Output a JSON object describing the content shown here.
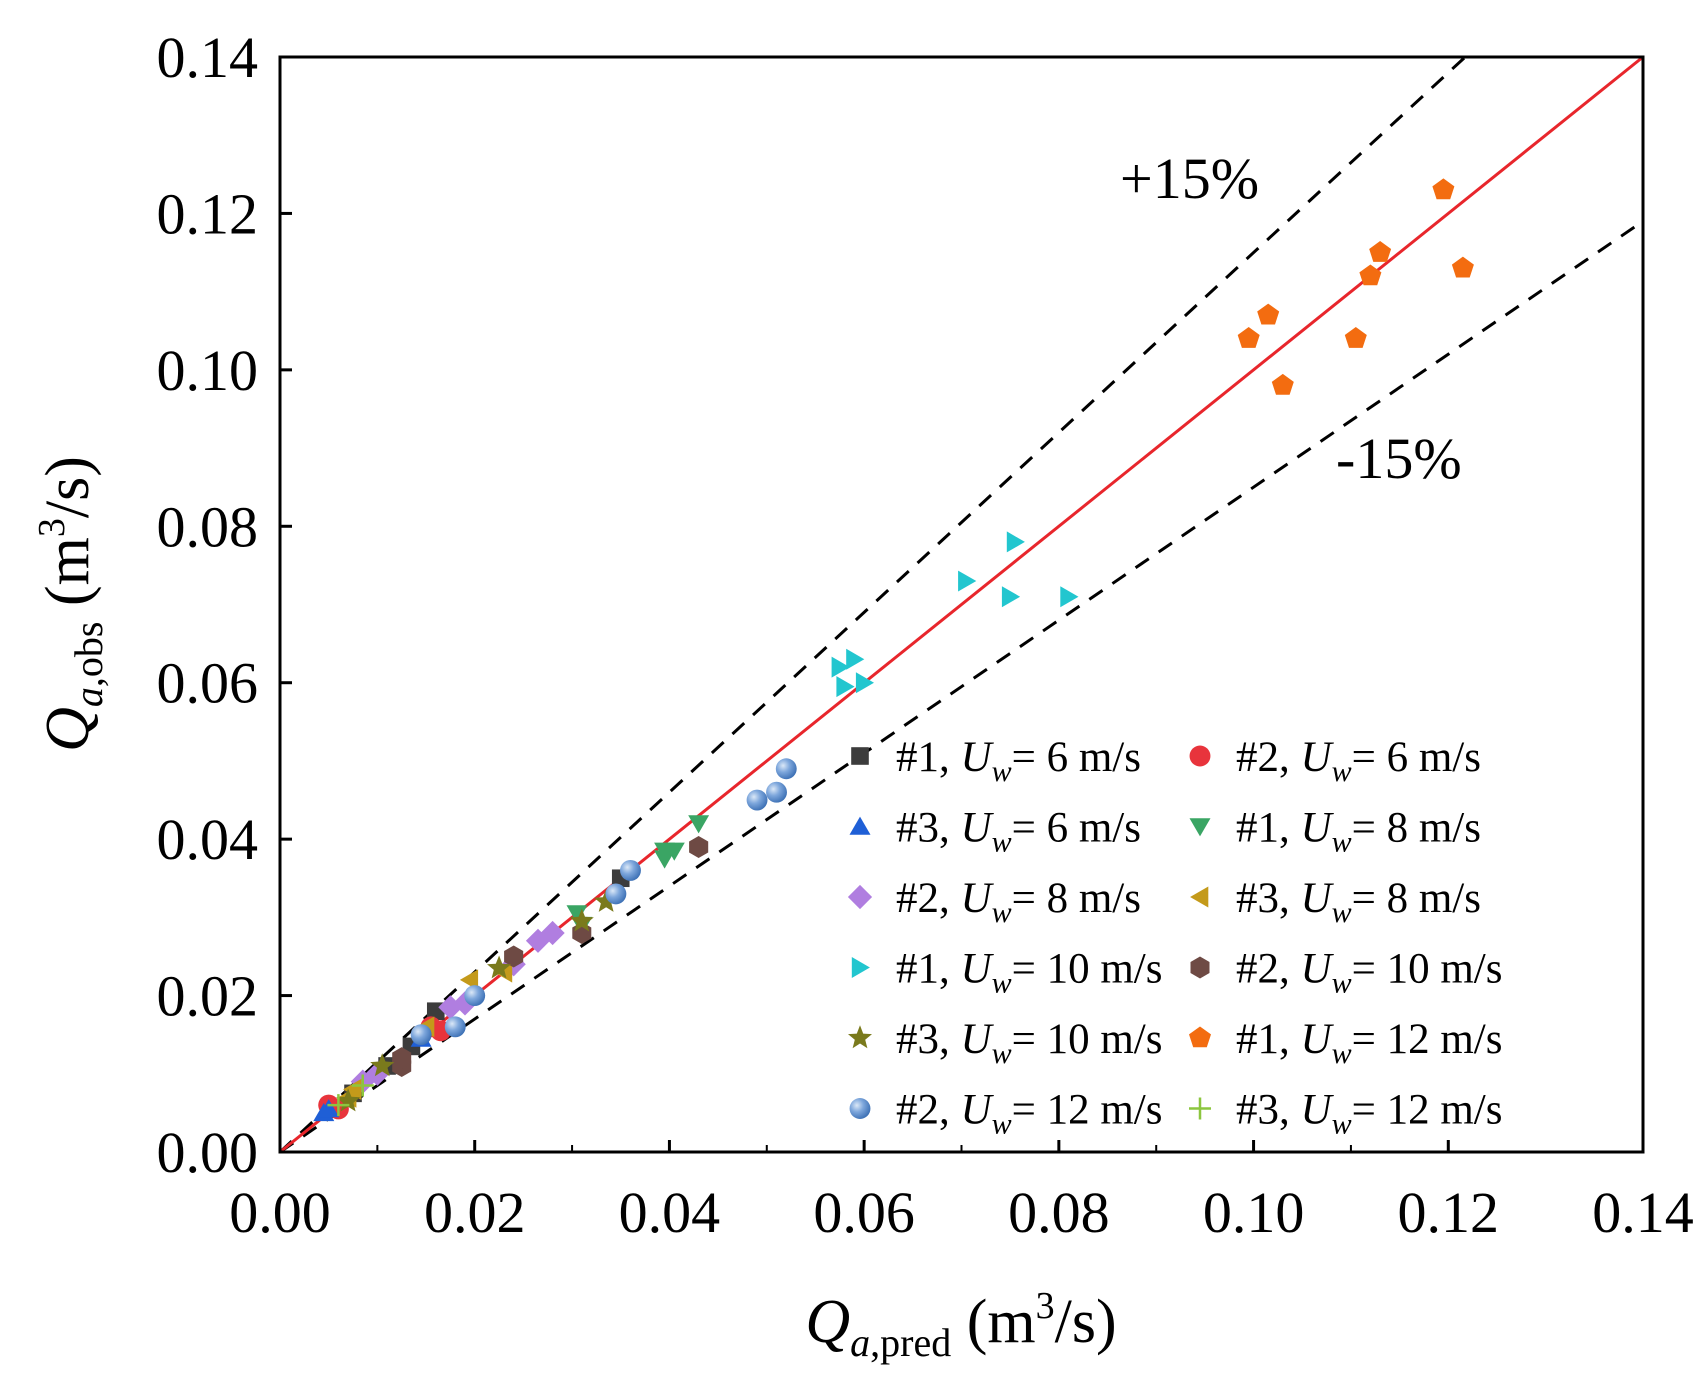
{
  "chart_data": {
    "type": "scatter",
    "xlabel": {
      "main": "Q",
      "sub": "a,pred",
      "unit_pre": " (m",
      "sup": "3",
      "unit_post": "/s)"
    },
    "ylabel": {
      "main": "Q",
      "sub": "a,obs",
      "unit_pre": " (m",
      "sup": "3",
      "unit_post": "/s)"
    },
    "xlim": [
      0,
      0.14
    ],
    "ylim": [
      0,
      0.14
    ],
    "x_ticks": [
      "0.00",
      "0.02",
      "0.04",
      "0.06",
      "0.08",
      "0.10",
      "0.12",
      "0.14"
    ],
    "y_ticks": [
      "0.00",
      "0.02",
      "0.04",
      "0.06",
      "0.08",
      "0.10",
      "0.12",
      "0.14"
    ],
    "reference_lines": [
      {
        "name": "1:1",
        "slope": 1.0,
        "color": "#e8262c",
        "style": "solid"
      },
      {
        "name": "+15%",
        "slope": 1.15,
        "color": "#000000",
        "style": "dashed"
      },
      {
        "name": "-15%",
        "slope": 0.85,
        "color": "#000000",
        "style": "dashed"
      }
    ],
    "annotations": {
      "plus": "+15%",
      "minus": "-15%"
    },
    "legend_position": "bottom-right",
    "series": [
      {
        "id": "1-6",
        "label_pre": "#1, ",
        "label_u": "U",
        "label_sub": "w",
        "label_post": "= 6 m/s",
        "marker": "square",
        "color": "#3c3c3c",
        "points": [
          [
            0.0055,
            0.0055
          ],
          [
            0.0075,
            0.0075
          ],
          [
            0.011,
            0.011
          ],
          [
            0.0135,
            0.0135
          ],
          [
            0.016,
            0.018
          ],
          [
            0.035,
            0.035
          ]
        ]
      },
      {
        "id": "2-6",
        "label_pre": "#2, ",
        "label_u": "U",
        "label_sub": "w",
        "label_post": "= 6 m/s",
        "marker": "circle",
        "color": "#e8343c",
        "points": [
          [
            0.005,
            0.006
          ],
          [
            0.006,
            0.0055
          ],
          [
            0.0155,
            0.016
          ],
          [
            0.0165,
            0.0155
          ]
        ]
      },
      {
        "id": "3-6",
        "label_pre": "#3, ",
        "label_u": "U",
        "label_sub": "w",
        "label_post": "= 6 m/s",
        "marker": "triangle",
        "color": "#1f5fd6",
        "points": [
          [
            0.0045,
            0.005
          ],
          [
            0.005,
            0.0055
          ],
          [
            0.0145,
            0.0145
          ]
        ]
      },
      {
        "id": "1-8",
        "label_pre": "#1, ",
        "label_u": "U",
        "label_sub": "w",
        "label_post": "= 8 m/s",
        "marker": "tri-down",
        "color": "#3aa564",
        "points": [
          [
            0.0305,
            0.0305
          ],
          [
            0.031,
            0.029
          ],
          [
            0.0395,
            0.0375
          ],
          [
            0.0405,
            0.0385
          ],
          [
            0.0395,
            0.0385
          ],
          [
            0.043,
            0.042
          ]
        ]
      },
      {
        "id": "2-8",
        "label_pre": "#2, ",
        "label_u": "U",
        "label_sub": "w",
        "label_post": "= 8 m/s",
        "marker": "diamond",
        "color": "#b07ee0",
        "points": [
          [
            0.0085,
            0.009
          ],
          [
            0.01,
            0.01
          ],
          [
            0.0175,
            0.0185
          ],
          [
            0.019,
            0.019
          ],
          [
            0.024,
            0.024
          ],
          [
            0.0265,
            0.027
          ],
          [
            0.028,
            0.028
          ]
        ]
      },
      {
        "id": "3-8",
        "label_pre": "#3, ",
        "label_u": "U",
        "label_sub": "w",
        "label_post": "= 8 m/s",
        "marker": "tri-left",
        "color": "#c49a1a",
        "points": [
          [
            0.007,
            0.007
          ],
          [
            0.0075,
            0.008
          ],
          [
            0.015,
            0.016
          ],
          [
            0.0195,
            0.022
          ],
          [
            0.023,
            0.023
          ]
        ]
      },
      {
        "id": "1-10",
        "label_pre": "#1, ",
        "label_u": "U",
        "label_sub": "w",
        "label_post": "= 10 m/s",
        "marker": "tri-right",
        "color": "#22c6cf",
        "points": [
          [
            0.0575,
            0.062
          ],
          [
            0.059,
            0.063
          ],
          [
            0.058,
            0.0595
          ],
          [
            0.06,
            0.06
          ],
          [
            0.0705,
            0.073
          ],
          [
            0.0755,
            0.078
          ],
          [
            0.075,
            0.071
          ],
          [
            0.081,
            0.071
          ]
        ]
      },
      {
        "id": "2-10",
        "label_pre": "#2, ",
        "label_u": "U",
        "label_sub": "w",
        "label_post": "= 10 m/s",
        "marker": "hexagon",
        "color": "#6e4a44",
        "points": [
          [
            0.0125,
            0.011
          ],
          [
            0.0125,
            0.012
          ],
          [
            0.024,
            0.025
          ],
          [
            0.031,
            0.028
          ],
          [
            0.043,
            0.039
          ]
        ]
      },
      {
        "id": "3-10",
        "label_pre": "#3, ",
        "label_u": "U",
        "label_sub": "w",
        "label_post": "= 10 m/s",
        "marker": "star",
        "color": "#7a7a1c",
        "points": [
          [
            0.007,
            0.0065
          ],
          [
            0.0105,
            0.011
          ],
          [
            0.0225,
            0.0235
          ],
          [
            0.031,
            0.0295
          ],
          [
            0.0335,
            0.032
          ]
        ]
      },
      {
        "id": "1-12",
        "label_pre": "#1, ",
        "label_u": "U",
        "label_sub": "w",
        "label_post": "= 12 m/s",
        "marker": "pentagon",
        "color": "#f36c10",
        "points": [
          [
            0.0995,
            0.104
          ],
          [
            0.1015,
            0.107
          ],
          [
            0.103,
            0.098
          ],
          [
            0.1105,
            0.104
          ],
          [
            0.112,
            0.112
          ],
          [
            0.113,
            0.115
          ],
          [
            0.1195,
            0.123
          ],
          [
            0.1215,
            0.113
          ]
        ]
      },
      {
        "id": "2-12",
        "label_pre": "#2, ",
        "label_u": "U",
        "label_sub": "w",
        "label_post": "= 12 m/s",
        "marker": "sphere",
        "color": "#6e9cd6",
        "points": [
          [
            0.0145,
            0.015
          ],
          [
            0.018,
            0.016
          ],
          [
            0.02,
            0.02
          ],
          [
            0.0345,
            0.033
          ],
          [
            0.036,
            0.036
          ],
          [
            0.049,
            0.045
          ],
          [
            0.051,
            0.046
          ],
          [
            0.052,
            0.049
          ]
        ]
      },
      {
        "id": "3-12",
        "label_pre": "#3, ",
        "label_u": "U",
        "label_sub": "w",
        "label_post": "= 12 m/s",
        "marker": "plus",
        "color": "#8cc63f",
        "points": [
          [
            0.006,
            0.006
          ],
          [
            0.0085,
            0.0085
          ]
        ]
      }
    ]
  }
}
